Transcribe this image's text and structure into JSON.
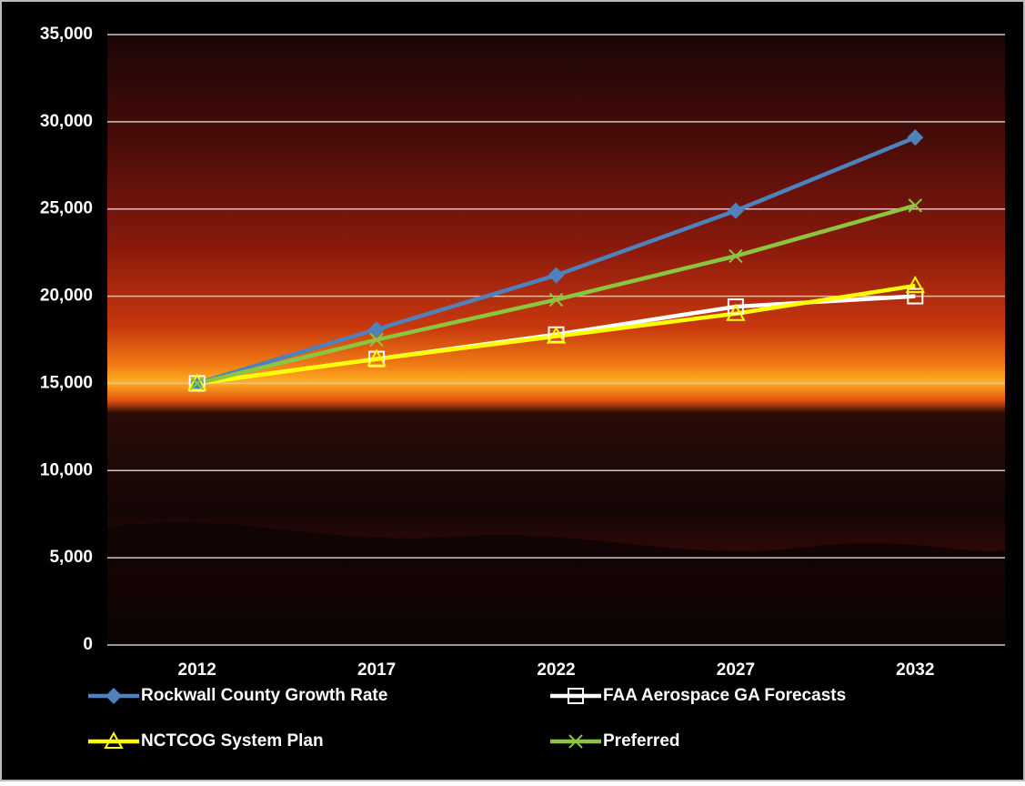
{
  "chart_data": {
    "type": "line",
    "categories": [
      "2012",
      "2017",
      "2022",
      "2027",
      "2032"
    ],
    "series": [
      {
        "name": "Rockwall County Growth Rate",
        "color": "#4f81bd",
        "marker": "diamond",
        "values": [
          15000,
          18100,
          21200,
          24900,
          29100
        ]
      },
      {
        "name": "FAA Aerospace GA Forecasts",
        "color": "#ffffff",
        "marker": "square",
        "values": [
          15000,
          16400,
          17800,
          19400,
          20000
        ]
      },
      {
        "name": "NCTCOG System Plan",
        "color": "#ffff00",
        "marker": "triangle",
        "values": [
          15000,
          16400,
          17700,
          19000,
          20600
        ]
      },
      {
        "name": "Preferred",
        "color": "#8cc63f",
        "marker": "x",
        "values": [
          15000,
          17500,
          19800,
          22300,
          25200
        ]
      }
    ],
    "ylim": [
      0,
      35000
    ],
    "yticks": [
      0,
      {
        "value": 5000,
        "label": "5,000"
      },
      {
        "value": 10000,
        "label": "10,000"
      },
      {
        "value": 15000,
        "label": "15,000"
      },
      {
        "value": 20000,
        "label": "20,000"
      },
      {
        "value": 25000,
        "label": "25,000"
      },
      {
        "value": 30000,
        "label": "30,000"
      },
      {
        "value": 35000,
        "label": "35,000"
      }
    ],
    "grid": true,
    "legend": "bottom"
  }
}
